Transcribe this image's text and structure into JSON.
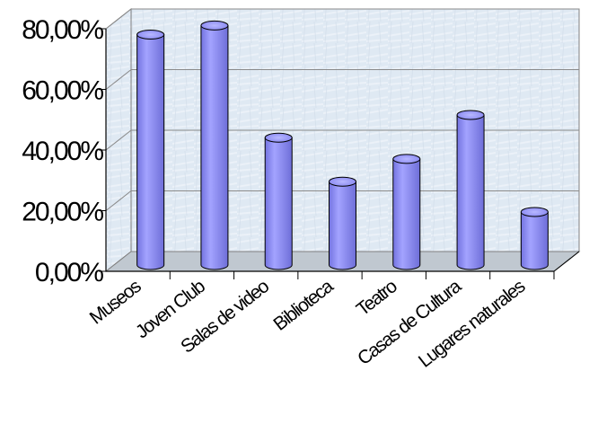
{
  "chart_data": {
    "type": "bar",
    "style": "3d-cylinder",
    "categories": [
      "Museos",
      "Joven Club",
      "Salas de video",
      "Biblioteca",
      "Teatro",
      "Casas de Cultura",
      "Lugares naturales"
    ],
    "values": [
      76,
      79,
      42,
      27.5,
      35,
      49.5,
      17.5
    ],
    "ytick_labels": [
      "0,00%",
      "20,00%",
      "40,00%",
      "60,00%",
      "80,00%"
    ],
    "ytick_values": [
      0,
      20,
      40,
      60,
      80
    ],
    "ylim": [
      0,
      80
    ],
    "title": "",
    "xlabel": "",
    "ylabel": "",
    "grid": true,
    "legend": "none",
    "colors": {
      "bar_fill": "#9999ff",
      "bar_stroke": "#000000",
      "plot_background": "#dfe9f3",
      "axis": "#000000"
    }
  }
}
